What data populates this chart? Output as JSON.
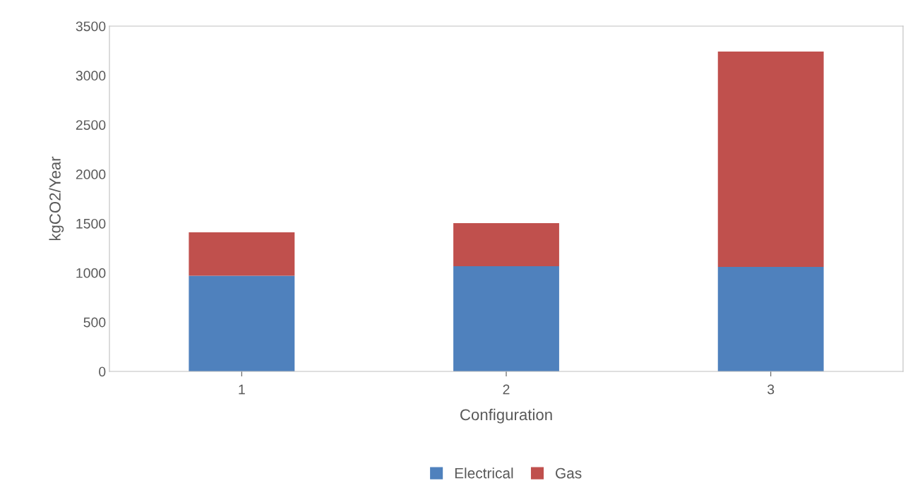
{
  "chart_data": {
    "type": "bar",
    "stacked": true,
    "xlabel": "Configuration",
    "ylabel": "kgCO2/Year",
    "categories": [
      "1",
      "2",
      "3"
    ],
    "series": [
      {
        "name": "Electrical",
        "color": "#4f81bd",
        "values": [
          970,
          1067,
          1060
        ]
      },
      {
        "name": "Gas",
        "color": "#c0504d",
        "values": [
          440,
          436,
          2183
        ]
      }
    ],
    "ylim": [
      0,
      3500
    ],
    "yticks": [
      0,
      500,
      1000,
      1500,
      2000,
      2500,
      3000,
      3500
    ],
    "grid": false,
    "legend": "bottom"
  }
}
